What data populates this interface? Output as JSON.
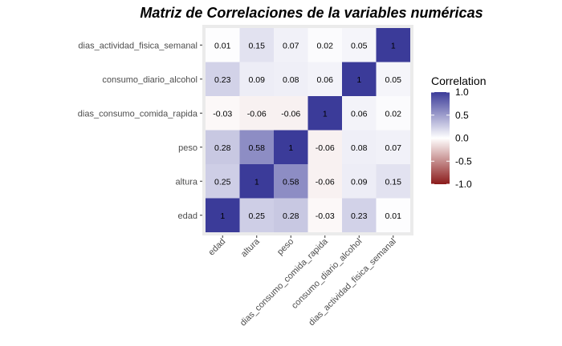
{
  "chart_data": {
    "type": "heatmap",
    "title": "Matriz de Correlaciones de la variables numéricas",
    "xlabel": "",
    "ylabel": "",
    "variables": [
      "edad",
      "altura",
      "peso",
      "dias_consumo_comida_rapida",
      "consumo_diario_alcohol",
      "dias_actividad_fisica_semanal"
    ],
    "matrix": [
      [
        1,
        0.25,
        0.28,
        -0.03,
        0.23,
        0.01
      ],
      [
        0.25,
        1,
        0.58,
        -0.06,
        0.09,
        0.15
      ],
      [
        0.28,
        0.58,
        1,
        -0.06,
        0.08,
        0.07
      ],
      [
        -0.03,
        -0.06,
        -0.06,
        1,
        0.06,
        0.02
      ],
      [
        0.23,
        0.09,
        0.08,
        0.06,
        1,
        0.05
      ],
      [
        0.01,
        0.15,
        0.07,
        0.02,
        0.05,
        1
      ]
    ],
    "value_labels": [
      [
        "1",
        "0.25",
        "0.28",
        "-0.03",
        "0.23",
        "0.01"
      ],
      [
        "0.25",
        "1",
        "0.58",
        "-0.06",
        "0.09",
        "0.15"
      ],
      [
        "0.28",
        "0.58",
        "1",
        "-0.06",
        "0.08",
        "0.07"
      ],
      [
        "-0.03",
        "-0.06",
        "-0.06",
        "1",
        "0.06",
        "0.02"
      ],
      [
        "0.23",
        "0.09",
        "0.08",
        "0.06",
        "1",
        "0.05"
      ],
      [
        "0.01",
        "0.15",
        "0.07",
        "0.02",
        "0.05",
        "1"
      ]
    ],
    "legend": {
      "title": "Correlation",
      "placement": "right",
      "range": [
        -1,
        1
      ],
      "ticks": [
        1.0,
        0.5,
        0.0,
        -0.5,
        -1.0
      ],
      "tick_labels": [
        "1.0",
        "0.5",
        "0.0",
        "-0.5",
        "-1.0"
      ]
    },
    "colors": {
      "low": "#8b1a1a",
      "mid": "#ffffff",
      "high": "#3b3b99",
      "panel_background": "#ebebeb"
    }
  }
}
